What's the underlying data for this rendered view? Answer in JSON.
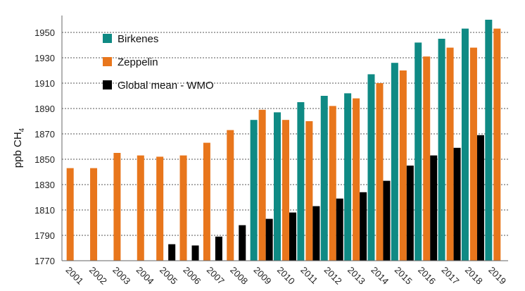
{
  "chart_data": {
    "type": "bar",
    "ylabel": "ppb CH",
    "ylabel_subscript": "4",
    "ylim": [
      1770,
      1960
    ],
    "yticks": [
      1770,
      1790,
      1810,
      1830,
      1850,
      1870,
      1890,
      1910,
      1930,
      1950
    ],
    "grid": "horizontal dotted",
    "legend_position": "top-left",
    "categories": [
      "2001",
      "2002",
      "2003",
      "2004",
      "2005",
      "2006",
      "2007",
      "2008",
      "2009",
      "2010",
      "2011",
      "2012",
      "2013",
      "2014",
      "2015",
      "2016",
      "2017",
      "2018",
      "2019"
    ],
    "series": [
      {
        "name": "Birkenes",
        "color": "#0f8a84",
        "values": [
          null,
          null,
          null,
          null,
          null,
          null,
          null,
          null,
          1881,
          1887,
          1895,
          1900,
          1902,
          1917,
          1926,
          1942,
          1945,
          1953,
          1960
        ]
      },
      {
        "name": "Zeppelin",
        "color": "#e8761c",
        "values": [
          1843,
          1843,
          1855,
          1853,
          1852,
          1853,
          1863,
          1873,
          1889,
          1881,
          1880,
          1892,
          1898,
          1910,
          1920,
          1931,
          1938,
          1938,
          1953
        ]
      },
      {
        "name": "Global mean - WMO",
        "color": "#000000",
        "values": [
          null,
          null,
          null,
          null,
          1783,
          1782,
          1789,
          1798,
          1803,
          1808,
          1813,
          1819,
          1824,
          1833,
          1845,
          1853,
          1859,
          1869,
          null
        ]
      }
    ]
  }
}
